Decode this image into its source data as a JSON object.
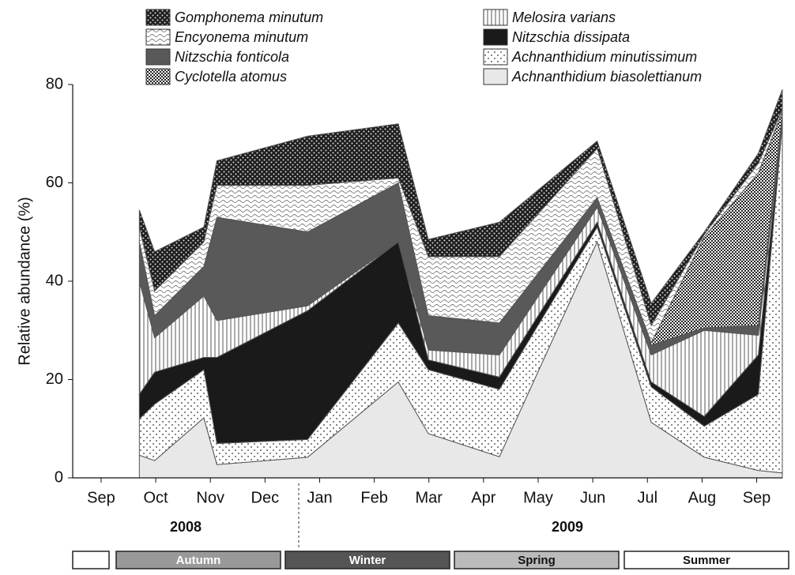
{
  "chart_data": {
    "type": "stacked-area",
    "y_label": "Relative abundance (%)",
    "x": [
      0.7,
      0.98,
      1.88,
      2.12,
      3.78,
      5.44,
      5.99,
      7.29,
      9.08,
      10.07,
      11.04,
      12.03,
      12.47
    ],
    "xlim": [
      -0.52,
      12.47
    ],
    "xticks": [
      {
        "value": 0,
        "label": "Sep"
      },
      {
        "value": 1,
        "label": "Oct"
      },
      {
        "value": 2,
        "label": "Nov"
      },
      {
        "value": 3,
        "label": "Dec"
      },
      {
        "value": 4,
        "label": "Jan"
      },
      {
        "value": 5,
        "label": "Feb"
      },
      {
        "value": 6,
        "label": "Mar"
      },
      {
        "value": 7,
        "label": "Apr"
      },
      {
        "value": 8,
        "label": "May"
      },
      {
        "value": 9,
        "label": "Jun"
      },
      {
        "value": 10,
        "label": "Jul"
      },
      {
        "value": 11,
        "label": "Aug"
      },
      {
        "value": 12,
        "label": "Sep"
      }
    ],
    "ylim": [
      0,
      80
    ],
    "yticks": [
      0,
      20,
      40,
      60,
      80
    ],
    "years": [
      "2008",
      "2009"
    ],
    "seasons": [
      "Autumn",
      "Winter",
      "Spring",
      "Summer"
    ],
    "series": [
      {
        "name": "Achnanthidium biasolettianum",
        "color": "#e8e8e8",
        "pattern": "solid",
        "values": [
          4.6,
          3.5,
          12.2,
          2.7,
          4.2,
          19.5,
          9,
          4.3,
          48,
          11.3,
          4.2,
          1.5,
          1.0
        ]
      },
      {
        "name": "Achnanthidium minutissimum",
        "color": "#ffffff",
        "pattern": "sparse-dots",
        "values": [
          7.4,
          11.5,
          9.8,
          4.3,
          3.6,
          12,
          13,
          13.7,
          3,
          7.2,
          6.3,
          15.5,
          71
        ]
      },
      {
        "name": "Nitzschia dissipata",
        "color": "#1a1a1a",
        "pattern": "solid",
        "values": [
          5,
          6.5,
          2.5,
          17.5,
          26.2,
          16.5,
          2,
          2.5,
          1,
          1,
          2,
          8,
          1
        ]
      },
      {
        "name": "Melosira varians",
        "color": "#ffffff",
        "pattern": "vertical-lines",
        "values": [
          23,
          7,
          12.5,
          7.5,
          1,
          0,
          2,
          4.5,
          3,
          5.5,
          17.5,
          4,
          0.5
        ]
      },
      {
        "name": "Nitzschia fonticola",
        "color": "#595959",
        "pattern": "solid",
        "values": [
          8,
          4.5,
          6,
          21,
          15,
          12,
          7,
          6.5,
          2,
          2,
          0.5,
          2,
          0.5
        ]
      },
      {
        "name": "Cyclotella atomus",
        "color": "#ffffff",
        "pattern": "dense-dots",
        "values": [
          0,
          0,
          0,
          0,
          0,
          0,
          0,
          0,
          0,
          0.5,
          18.5,
          31,
          0.5
        ]
      },
      {
        "name": "Encyonema minutum",
        "color": "#ffffff",
        "pattern": "waves",
        "values": [
          3,
          5,
          5,
          6.5,
          9.5,
          1,
          12,
          13.5,
          10,
          3.5,
          0.5,
          2,
          0.5
        ]
      },
      {
        "name": "Gomphonema minutum",
        "color": "#222222",
        "pattern": "white-dots",
        "values": [
          3.5,
          8,
          3,
          5,
          10,
          11,
          3.5,
          7,
          1.5,
          4.5,
          0.5,
          2,
          4
        ]
      }
    ]
  }
}
